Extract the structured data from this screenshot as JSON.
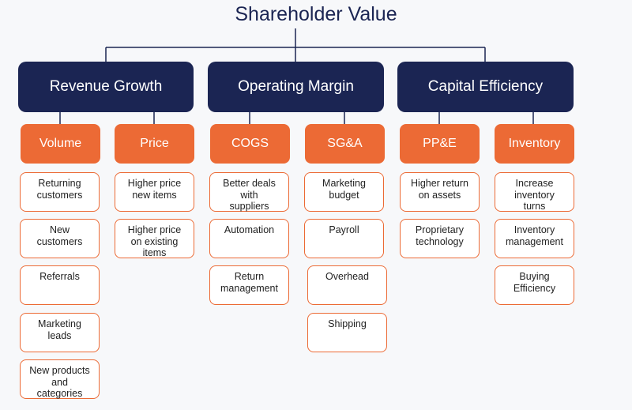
{
  "title": "Shareholder Value",
  "colors": {
    "navy": "#1b2553",
    "orange": "#ec6a35"
  },
  "branches": [
    {
      "label": "Revenue Growth",
      "children": [
        {
          "label": "Volume",
          "items": [
            "Returning\ncustomers",
            "New\ncustomers",
            "Referrals",
            "Marketing\nleads",
            "New products\nand\ncategories"
          ]
        },
        {
          "label": "Price",
          "items": [
            "Higher price\nnew items",
            "Higher price\non existing\nitems"
          ]
        }
      ]
    },
    {
      "label": "Operating Margin",
      "children": [
        {
          "label": "COGS",
          "items": [
            "Better deals\nwith\nsuppliers",
            "Automation",
            "Return\nmanagement"
          ]
        },
        {
          "label": "SG&A",
          "items": [
            "Marketing\nbudget",
            "Payroll",
            "Overhead",
            "Shipping"
          ]
        }
      ]
    },
    {
      "label": "Capital Efficiency",
      "children": [
        {
          "label": "PP&E",
          "items": [
            "Higher return\non assets",
            "Proprietary\ntechnology"
          ]
        },
        {
          "label": "Inventory",
          "items": [
            "Increase\ninventory\nturns",
            "Inventory\nmanagement",
            "Buying\nEfficiency"
          ]
        }
      ]
    }
  ]
}
